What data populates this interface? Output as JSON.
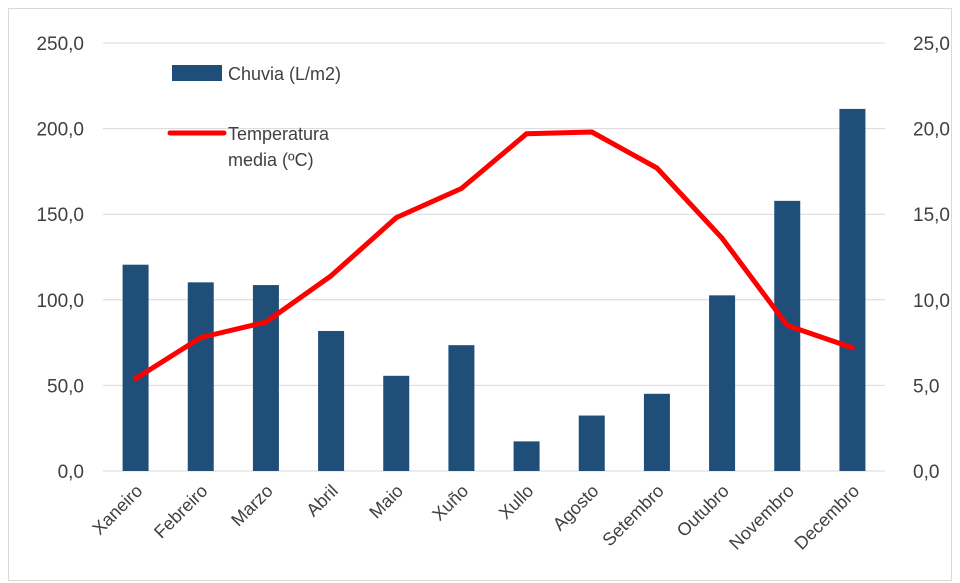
{
  "chart_data": {
    "type": "bar",
    "categories": [
      "Xaneiro",
      "Febreiro",
      "Marzo",
      "Abril",
      "Maio",
      "Xuño",
      "Xullo",
      "Agosto",
      "Setembro",
      "Outubro",
      "Novembro",
      "Decembro"
    ],
    "series": [
      {
        "name": "Chuvia (L/m2)",
        "type": "bar",
        "axis": "left",
        "color": "#1f4e79",
        "values": [
          120.5,
          110.2,
          108.6,
          81.8,
          55.6,
          73.5,
          17.3,
          32.4,
          45.1,
          102.6,
          157.8,
          211.5
        ]
      },
      {
        "name": "Temperatura media (ºC)",
        "type": "line",
        "axis": "right",
        "color": "#ff0000",
        "values": [
          5.4,
          7.8,
          8.7,
          11.4,
          14.8,
          16.5,
          19.7,
          19.8,
          17.7,
          13.6,
          8.5,
          7.2
        ]
      }
    ],
    "y_left": {
      "min": 0,
      "max": 250,
      "step": 50,
      "tick_labels": [
        "0,0",
        "50,0",
        "100,0",
        "150,0",
        "200,0",
        "250,0"
      ]
    },
    "y_right": {
      "min": 0,
      "max": 25,
      "step": 5,
      "tick_labels": [
        "0,0",
        "5,0",
        "10,0",
        "15,0",
        "20,0",
        "25,0"
      ]
    },
    "legend": {
      "placement": "top-left",
      "items": [
        {
          "label_lines": [
            "Chuvia (L/m2)"
          ]
        },
        {
          "label_lines": [
            "Temperatura",
            "media (ºC)"
          ]
        }
      ]
    },
    "gridlines": true
  }
}
